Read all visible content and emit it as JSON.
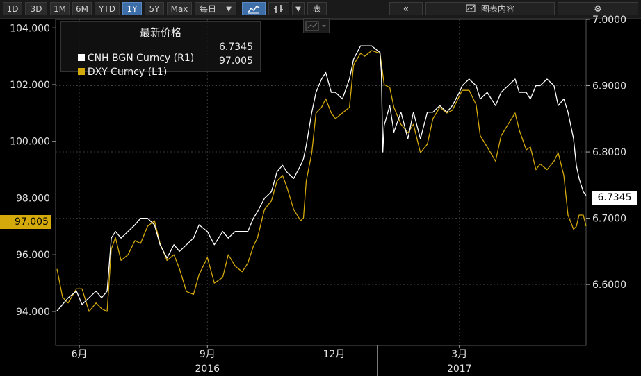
{
  "toolbar": {
    "periods": [
      "1D",
      "3D",
      "1M",
      "6M",
      "YTD",
      "1Y",
      "5Y",
      "Max"
    ],
    "active_period": "1Y",
    "frequency": "每日",
    "table_label": "表",
    "panel_label": "图表内容"
  },
  "colors": {
    "background": "#000000",
    "cnh": "#ffffff",
    "dxy": "#d4a90c",
    "grid": "#333333",
    "active": "#3e6ea8"
  },
  "icons": [
    "line-chart-icon",
    "bar-chart-icon",
    "dropdown-icon",
    "collapse-left-icon",
    "chart-content-icon",
    "gear-icon"
  ],
  "legend": {
    "title": "最新价格",
    "rows": [
      {
        "name": "CNH BGN Curncy",
        "axis": "(R1)",
        "value": "6.7345",
        "color": "#ffffff"
      },
      {
        "name": "DXY Curncy",
        "axis": "(L1)",
        "value": "97.005",
        "color": "#d4a90c"
      }
    ]
  },
  "chart_data": {
    "type": "line",
    "title": "",
    "x_ticks": [
      {
        "label": "6月",
        "x": "2016-06-01"
      },
      {
        "label": "9月",
        "x": "2016-09-01"
      },
      {
        "label": "12月",
        "x": "2016-12-01"
      },
      {
        "label": "3月",
        "x": "2017-03-01"
      }
    ],
    "x_years": [
      {
        "label": "2016",
        "x": "2016-09-01"
      },
      {
        "label": "2017",
        "x": "2017-03-01"
      }
    ],
    "x_range": [
      "2016-05-15",
      "2017-05-31"
    ],
    "left_axis": {
      "ylim": [
        92.8,
        104.3
      ],
      "ticks": [
        "94.000",
        "96.000",
        "98.000",
        "100.000",
        "102.000",
        "104.000"
      ]
    },
    "right_axis": {
      "ylim": [
        6.508,
        7.0
      ],
      "ticks": [
        "6.6000",
        "6.7000",
        "6.8000",
        "6.9000",
        "7.0000"
      ]
    },
    "last_values": {
      "left": "97.005",
      "right": "6.7345"
    },
    "grid": true,
    "legend_position": "top-left",
    "series": [
      {
        "name": "DXY Curncy",
        "axis": "left",
        "color": "#d4a90c",
        "points": [
          [
            "2016-05-16",
            95.5
          ],
          [
            "2016-05-20",
            94.5
          ],
          [
            "2016-05-24",
            94.3
          ],
          [
            "2016-05-30",
            94.8
          ],
          [
            "2016-06-03",
            94.8
          ],
          [
            "2016-06-08",
            94.0
          ],
          [
            "2016-06-13",
            94.3
          ],
          [
            "2016-06-17",
            94.1
          ],
          [
            "2016-06-21",
            94.0
          ],
          [
            "2016-06-24",
            96.2
          ],
          [
            "2016-06-27",
            96.6
          ],
          [
            "2016-07-01",
            95.8
          ],
          [
            "2016-07-06",
            96.0
          ],
          [
            "2016-07-11",
            96.5
          ],
          [
            "2016-07-15",
            96.4
          ],
          [
            "2016-07-20",
            97.0
          ],
          [
            "2016-07-25",
            97.2
          ],
          [
            "2016-07-29",
            96.4
          ],
          [
            "2016-08-03",
            95.8
          ],
          [
            "2016-08-08",
            96.0
          ],
          [
            "2016-08-12",
            95.5
          ],
          [
            "2016-08-17",
            94.7
          ],
          [
            "2016-08-22",
            94.6
          ],
          [
            "2016-08-26",
            95.3
          ],
          [
            "2016-09-01",
            95.9
          ],
          [
            "2016-09-06",
            95.0
          ],
          [
            "2016-09-12",
            95.2
          ],
          [
            "2016-09-16",
            96.0
          ],
          [
            "2016-09-21",
            95.6
          ],
          [
            "2016-09-26",
            95.4
          ],
          [
            "2016-09-30",
            95.7
          ],
          [
            "2016-10-04",
            96.3
          ],
          [
            "2016-10-07",
            96.6
          ],
          [
            "2016-10-12",
            97.6
          ],
          [
            "2016-10-17",
            97.9
          ],
          [
            "2016-10-21",
            98.6
          ],
          [
            "2016-10-25",
            98.8
          ],
          [
            "2016-10-28",
            98.4
          ],
          [
            "2016-11-02",
            97.6
          ],
          [
            "2016-11-07",
            97.2
          ],
          [
            "2016-11-09",
            97.3
          ],
          [
            "2016-11-11",
            98.6
          ],
          [
            "2016-11-15",
            99.6
          ],
          [
            "2016-11-18",
            101.0
          ],
          [
            "2016-11-22",
            101.2
          ],
          [
            "2016-11-25",
            101.5
          ],
          [
            "2016-11-29",
            101.0
          ],
          [
            "2016-12-02",
            100.8
          ],
          [
            "2016-12-07",
            101.0
          ],
          [
            "2016-12-12",
            101.2
          ],
          [
            "2016-12-15",
            102.7
          ],
          [
            "2016-12-20",
            103.1
          ],
          [
            "2016-12-23",
            103.0
          ],
          [
            "2016-12-28",
            103.2
          ],
          [
            "2017-01-03",
            103.1
          ],
          [
            "2017-01-06",
            102.0
          ],
          [
            "2017-01-10",
            101.9
          ],
          [
            "2017-01-13",
            101.2
          ],
          [
            "2017-01-18",
            100.6
          ],
          [
            "2017-01-23",
            100.3
          ],
          [
            "2017-01-27",
            100.6
          ],
          [
            "2017-02-01",
            99.6
          ],
          [
            "2017-02-06",
            99.9
          ],
          [
            "2017-02-10",
            100.8
          ],
          [
            "2017-02-15",
            101.2
          ],
          [
            "2017-02-20",
            101.0
          ],
          [
            "2017-02-24",
            101.1
          ],
          [
            "2017-03-01",
            101.6
          ],
          [
            "2017-03-03",
            101.8
          ],
          [
            "2017-03-08",
            101.8
          ],
          [
            "2017-03-13",
            101.3
          ],
          [
            "2017-03-16",
            100.2
          ],
          [
            "2017-03-21",
            99.8
          ],
          [
            "2017-03-27",
            99.3
          ],
          [
            "2017-03-31",
            100.2
          ],
          [
            "2017-04-05",
            100.6
          ],
          [
            "2017-04-10",
            101.0
          ],
          [
            "2017-04-13",
            100.4
          ],
          [
            "2017-04-18",
            99.7
          ],
          [
            "2017-04-21",
            99.8
          ],
          [
            "2017-04-25",
            99.0
          ],
          [
            "2017-04-28",
            99.2
          ],
          [
            "2017-05-03",
            99.0
          ],
          [
            "2017-05-08",
            99.3
          ],
          [
            "2017-05-11",
            99.6
          ],
          [
            "2017-05-15",
            98.8
          ],
          [
            "2017-05-18",
            97.4
          ],
          [
            "2017-05-22",
            96.9
          ],
          [
            "2017-05-24",
            97.0
          ],
          [
            "2017-05-26",
            97.4
          ],
          [
            "2017-05-29",
            97.4
          ],
          [
            "2017-05-31",
            97.005
          ]
        ]
      },
      {
        "name": "CNH BGN Curncy",
        "axis": "right",
        "color": "#ffffff",
        "points": [
          [
            "2016-05-16",
            6.56
          ],
          [
            "2016-05-20",
            6.57
          ],
          [
            "2016-05-24",
            6.58
          ],
          [
            "2016-05-30",
            6.59
          ],
          [
            "2016-06-03",
            6.57
          ],
          [
            "2016-06-08",
            6.58
          ],
          [
            "2016-06-13",
            6.59
          ],
          [
            "2016-06-17",
            6.58
          ],
          [
            "2016-06-21",
            6.59
          ],
          [
            "2016-06-24",
            6.67
          ],
          [
            "2016-06-27",
            6.68
          ],
          [
            "2016-07-01",
            6.67
          ],
          [
            "2016-07-06",
            6.68
          ],
          [
            "2016-07-11",
            6.69
          ],
          [
            "2016-07-15",
            6.7
          ],
          [
            "2016-07-20",
            6.7
          ],
          [
            "2016-07-25",
            6.69
          ],
          [
            "2016-07-29",
            6.66
          ],
          [
            "2016-08-03",
            6.64
          ],
          [
            "2016-08-08",
            6.66
          ],
          [
            "2016-08-12",
            6.65
          ],
          [
            "2016-08-17",
            6.66
          ],
          [
            "2016-08-22",
            6.67
          ],
          [
            "2016-08-26",
            6.69
          ],
          [
            "2016-09-01",
            6.68
          ],
          [
            "2016-09-06",
            6.66
          ],
          [
            "2016-09-12",
            6.68
          ],
          [
            "2016-09-16",
            6.67
          ],
          [
            "2016-09-21",
            6.68
          ],
          [
            "2016-09-26",
            6.68
          ],
          [
            "2016-09-30",
            6.68
          ],
          [
            "2016-10-04",
            6.7
          ],
          [
            "2016-10-07",
            6.71
          ],
          [
            "2016-10-12",
            6.73
          ],
          [
            "2016-10-17",
            6.74
          ],
          [
            "2016-10-21",
            6.77
          ],
          [
            "2016-10-25",
            6.78
          ],
          [
            "2016-10-28",
            6.77
          ],
          [
            "2016-11-02",
            6.76
          ],
          [
            "2016-11-07",
            6.78
          ],
          [
            "2016-11-09",
            6.79
          ],
          [
            "2016-11-11",
            6.81
          ],
          [
            "2016-11-15",
            6.86
          ],
          [
            "2016-11-18",
            6.89
          ],
          [
            "2016-11-22",
            6.91
          ],
          [
            "2016-11-25",
            6.92
          ],
          [
            "2016-11-29",
            6.89
          ],
          [
            "2016-12-02",
            6.89
          ],
          [
            "2016-12-07",
            6.88
          ],
          [
            "2016-12-12",
            6.91
          ],
          [
            "2016-12-15",
            6.94
          ],
          [
            "2016-12-20",
            6.96
          ],
          [
            "2016-12-23",
            6.96
          ],
          [
            "2016-12-28",
            6.96
          ],
          [
            "2017-01-03",
            6.95
          ],
          [
            "2017-01-04",
            6.92
          ],
          [
            "2017-01-05",
            6.8
          ],
          [
            "2017-01-06",
            6.84
          ],
          [
            "2017-01-10",
            6.87
          ],
          [
            "2017-01-13",
            6.83
          ],
          [
            "2017-01-18",
            6.86
          ],
          [
            "2017-01-23",
            6.82
          ],
          [
            "2017-01-27",
            6.86
          ],
          [
            "2017-02-01",
            6.82
          ],
          [
            "2017-02-06",
            6.86
          ],
          [
            "2017-02-10",
            6.86
          ],
          [
            "2017-02-15",
            6.87
          ],
          [
            "2017-02-20",
            6.86
          ],
          [
            "2017-02-24",
            6.87
          ],
          [
            "2017-03-01",
            6.89
          ],
          [
            "2017-03-03",
            6.9
          ],
          [
            "2017-03-08",
            6.91
          ],
          [
            "2017-03-13",
            6.9
          ],
          [
            "2017-03-16",
            6.88
          ],
          [
            "2017-03-21",
            6.89
          ],
          [
            "2017-03-27",
            6.87
          ],
          [
            "2017-03-31",
            6.89
          ],
          [
            "2017-04-05",
            6.9
          ],
          [
            "2017-04-10",
            6.91
          ],
          [
            "2017-04-13",
            6.89
          ],
          [
            "2017-04-18",
            6.89
          ],
          [
            "2017-04-21",
            6.88
          ],
          [
            "2017-04-25",
            6.9
          ],
          [
            "2017-04-28",
            6.9
          ],
          [
            "2017-05-03",
            6.91
          ],
          [
            "2017-05-08",
            6.9
          ],
          [
            "2017-05-11",
            6.87
          ],
          [
            "2017-05-15",
            6.88
          ],
          [
            "2017-05-18",
            6.86
          ],
          [
            "2017-05-22",
            6.82
          ],
          [
            "2017-05-24",
            6.78
          ],
          [
            "2017-05-26",
            6.76
          ],
          [
            "2017-05-29",
            6.74
          ],
          [
            "2017-05-31",
            6.7345
          ]
        ]
      }
    ]
  }
}
